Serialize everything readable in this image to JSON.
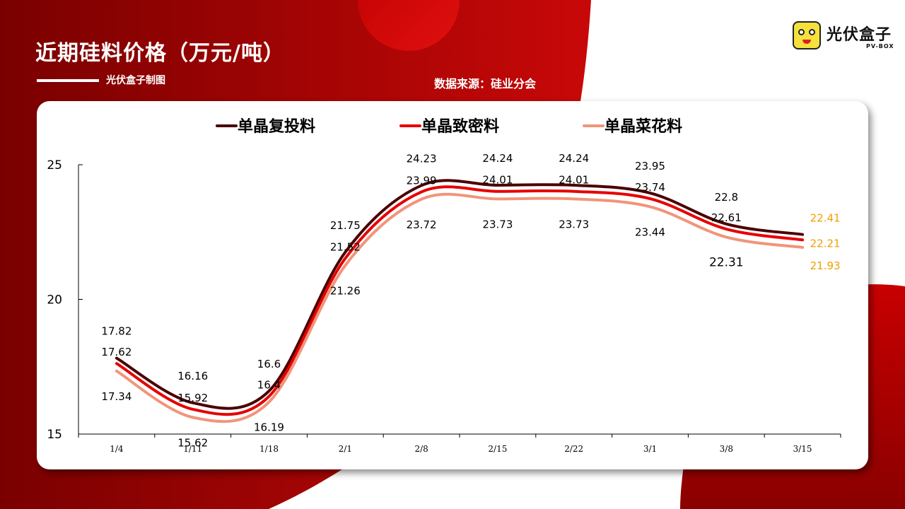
{
  "header": {
    "title": "近期硅料价格（万元/吨）",
    "maker": "光伏盒子制图",
    "source": "数据来源：硅业分会"
  },
  "logo": {
    "name_cn": "光伏盒子",
    "name_en": "PV-BOX",
    "icon": "box-mascot-icon"
  },
  "colors": {
    "background_red": "#a00000",
    "accent_red": "#d90e0e",
    "label_orange": "#f0a000"
  },
  "chart_data": {
    "type": "line",
    "categories": [
      "1/4",
      "1/11",
      "1/18",
      "2/1",
      "2/8",
      "2/15",
      "2/22",
      "3/1",
      "3/8",
      "3/15"
    ],
    "ylim": [
      15,
      25
    ],
    "yticks": [
      15,
      20,
      25
    ],
    "grid": false,
    "legend_position": "top",
    "series": [
      {
        "name": "单晶复投料",
        "color": "#4a0000",
        "values": [
          17.82,
          16.16,
          16.6,
          21.75,
          24.23,
          24.24,
          24.24,
          23.95,
          22.8,
          22.41
        ],
        "labels": [
          "17.82",
          "16.16",
          "16.6",
          "21.75",
          "24.23",
          "24.24",
          "24.24",
          "23.95",
          "22.8",
          "22.41"
        ]
      },
      {
        "name": "单晶致密料",
        "color": "#e60000",
        "values": [
          17.62,
          15.92,
          16.4,
          21.52,
          23.99,
          24.01,
          24.01,
          23.74,
          22.61,
          22.21
        ],
        "labels": [
          "17.62",
          "15.92",
          "16.4",
          "21.52",
          "23.99",
          "24.01",
          "24.01",
          "23.74",
          "22.61",
          "22.21"
        ]
      },
      {
        "name": "单晶菜花料",
        "color": "#f0957a",
        "values": [
          17.34,
          15.62,
          16.19,
          21.26,
          23.72,
          23.73,
          23.73,
          23.44,
          22.31,
          21.93
        ],
        "labels": [
          "17.34",
          "15.62",
          "16.19",
          "21.26",
          "23.72",
          "23.73",
          "23.73",
          "23.44",
          "22.31",
          "21.93"
        ]
      }
    ]
  }
}
